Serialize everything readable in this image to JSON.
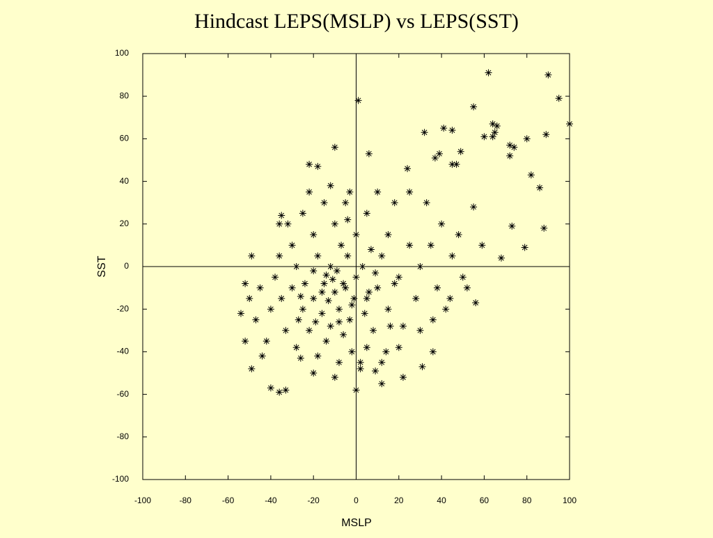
{
  "chart_data": {
    "type": "scatter",
    "title": "Hindcast LEPS(MSLP) vs LEPS(SST)",
    "x_label": "MSLP",
    "y_label": "SST",
    "xlim": [
      -100,
      100
    ],
    "ylim": [
      -100,
      100
    ],
    "xticks": [
      -100,
      -80,
      -60,
      -40,
      -20,
      0,
      20,
      40,
      60,
      80,
      100
    ],
    "yticks": [
      -100,
      -80,
      -60,
      -40,
      -20,
      0,
      20,
      40,
      60,
      80,
      100
    ],
    "grid": false,
    "zero_lines": true,
    "color": "#000000",
    "marker": "asterisk",
    "x": [
      62,
      90,
      95,
      1,
      100,
      55,
      64,
      66,
      65,
      64,
      60,
      80,
      89,
      32,
      41,
      45,
      49,
      72,
      74,
      72,
      6,
      -10,
      39,
      37,
      45,
      47,
      82,
      86,
      24,
      -22,
      -18,
      55,
      73,
      88,
      59,
      79,
      68,
      56,
      31,
      22,
      12,
      0,
      -40,
      -36,
      -33,
      -54,
      -52,
      -49,
      -52,
      -49,
      -35,
      -36,
      -26,
      5,
      36,
      9,
      -5,
      -10,
      -15,
      -8,
      0,
      -20,
      -12,
      -3,
      5,
      -25,
      -18,
      -7,
      3,
      10,
      -30,
      -22,
      -14,
      -2,
      8,
      15,
      20,
      12,
      0,
      -10,
      -20,
      -28,
      -35,
      -33,
      -40,
      -45,
      -42,
      -38,
      -30,
      -25,
      -15,
      -5,
      5,
      15,
      25,
      30,
      28,
      22,
      14,
      2,
      -8,
      -18,
      -28,
      -12,
      -6,
      4,
      -16,
      -24,
      -9,
      -4,
      7,
      18,
      -1,
      -13,
      -19,
      -27,
      35,
      40,
      45,
      38,
      42,
      50,
      48,
      33,
      25,
      18,
      10,
      -3,
      -12,
      -22,
      -32,
      -36,
      -47,
      -50,
      -44,
      -20,
      -10,
      2,
      12,
      20,
      30,
      36,
      44,
      52,
      -6,
      -11,
      -16,
      -2,
      6,
      -8,
      -14,
      -20,
      -26,
      9,
      -4,
      16
    ],
    "values": [
      91,
      90,
      79,
      78,
      67,
      75,
      67,
      66,
      63,
      61,
      61,
      60,
      62,
      63,
      65,
      64,
      54,
      57,
      56,
      52,
      53,
      56,
      53,
      51,
      48,
      48,
      43,
      37,
      46,
      48,
      47,
      28,
      19,
      18,
      10,
      9,
      4,
      -17,
      -47,
      -52,
      -55,
      -58,
      -57,
      -59,
      -58,
      -22,
      -35,
      -48,
      -8,
      5,
      24,
      20,
      -43,
      -38,
      -40,
      -49,
      -10,
      -12,
      -8,
      -20,
      -5,
      -15,
      0,
      -25,
      -15,
      -20,
      5,
      10,
      0,
      -10,
      -10,
      -30,
      -35,
      -40,
      -30,
      -20,
      -5,
      5,
      15,
      20,
      15,
      0,
      -15,
      -30,
      -20,
      -10,
      -35,
      -5,
      10,
      25,
      30,
      30,
      25,
      15,
      10,
      0,
      -15,
      -28,
      -40,
      -48,
      -45,
      -42,
      -38,
      -28,
      -32,
      -22,
      -22,
      -8,
      -2,
      5,
      8,
      -8,
      -15,
      -16,
      -26,
      -25,
      10,
      20,
      5,
      -10,
      -20,
      -5,
      15,
      30,
      35,
      30,
      35,
      35,
      38,
      35,
      20,
      5,
      -25,
      -15,
      -42,
      -50,
      -52,
      -45,
      -45,
      -38,
      -30,
      -25,
      -15,
      -10,
      -8,
      -6,
      -12,
      -18,
      -12,
      -26,
      -4,
      -2,
      -14,
      -3,
      22,
      -28
    ]
  }
}
